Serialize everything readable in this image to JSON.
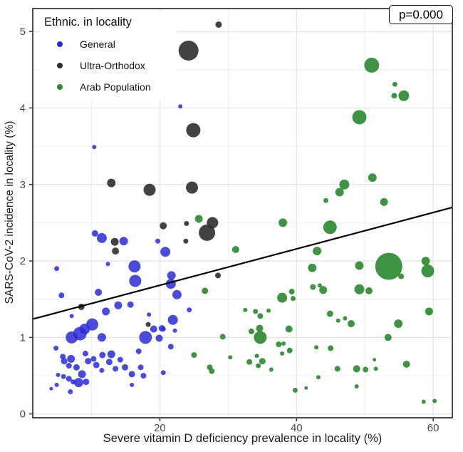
{
  "figure": {
    "p_value_label": "p=0.000",
    "legend": {
      "title": "Ethnic. in locality",
      "items": [
        {
          "label": "General",
          "color": "#2b2bd5"
        },
        {
          "label": "Ultra-Orthodox",
          "color": "#2d2d2d"
        },
        {
          "label": "Arab Population",
          "color": "#2f8b33"
        }
      ]
    }
  },
  "chart_data": {
    "type": "scatter",
    "title": "",
    "xlabel": "Severe vitamin D deficiency prevalence in locality (%)",
    "ylabel": "SARS-CoV-2 incidence in locality (%)",
    "xlim": [
      1.4,
      62.8
    ],
    "ylim": [
      -0.05,
      5.3
    ],
    "x_ticks": [
      20,
      40,
      60
    ],
    "y_ticks": [
      0,
      1,
      2,
      3,
      4,
      5
    ],
    "x_minor_ticks": [
      10,
      30,
      50
    ],
    "y_minor_ticks": [
      0.5,
      1.5,
      2.5,
      3.5,
      4.5
    ],
    "grid": "major and minor, light gray on white",
    "legend_position": "top-left inside panel",
    "annotation": "p=0.000",
    "regression_line": {
      "x1": 1.4,
      "y1": 1.24,
      "x2": 62.8,
      "y2": 2.7,
      "color": "#000000"
    },
    "series": [
      {
        "name": "General",
        "color": "#2b2bd5",
        "opacity": 0.85,
        "points": [
          [
            23.0,
            4.02,
            3
          ],
          [
            10.4,
            3.49,
            3
          ],
          [
            10.5,
            2.36,
            4.5
          ],
          [
            11.5,
            2.3,
            7
          ],
          [
            14.7,
            2.26,
            6
          ],
          [
            19.7,
            2.26,
            3.5
          ],
          [
            20.8,
            2.12,
            7
          ],
          [
            12.4,
            1.96,
            3
          ],
          [
            4.9,
            1.9,
            3.5
          ],
          [
            16.3,
            1.93,
            8.5
          ],
          [
            16.4,
            1.74,
            8.5
          ],
          [
            5.6,
            1.55,
            4
          ],
          [
            11.0,
            1.59,
            5
          ],
          [
            12.1,
            1.34,
            5.5
          ],
          [
            13.9,
            1.42,
            5.5
          ],
          [
            15.7,
            1.43,
            4.5
          ],
          [
            7.1,
            1.28,
            3
          ],
          [
            21.7,
            1.81,
            6
          ],
          [
            21.6,
            1.7,
            7
          ],
          [
            22.5,
            1.56,
            6.5
          ],
          [
            24.3,
            1.36,
            3.5
          ],
          [
            21.9,
            1.23,
            7
          ],
          [
            20.5,
            1.11,
            3.5
          ],
          [
            22.2,
            1.09,
            3
          ],
          [
            21.6,
            0.88,
            4
          ],
          [
            20.5,
            0.54,
            3.5
          ],
          [
            7.1,
            1.0,
            8.5
          ],
          [
            8.3,
            1.05,
            9.5
          ],
          [
            9.0,
            1.11,
            7.5
          ],
          [
            10.1,
            1.17,
            8.5
          ],
          [
            11.5,
            1.0,
            6
          ],
          [
            4.8,
            0.86,
            3.5
          ],
          [
            5.8,
            0.75,
            4
          ],
          [
            6.0,
            0.69,
            4.5
          ],
          [
            7.0,
            0.72,
            5.5
          ],
          [
            6.7,
            0.63,
            4
          ],
          [
            5.1,
            0.51,
            3
          ],
          [
            5.9,
            0.49,
            3.5
          ],
          [
            4.9,
            0.38,
            3
          ],
          [
            6.7,
            0.46,
            4
          ],
          [
            7.3,
            0.42,
            3.5
          ],
          [
            6.9,
            0.29,
            3.5
          ],
          [
            7.8,
            0.61,
            4.5
          ],
          [
            8.6,
            0.52,
            5.5
          ],
          [
            8.1,
            0.41,
            6.5
          ],
          [
            9.2,
            0.42,
            4.5
          ],
          [
            9.5,
            0.69,
            4.5
          ],
          [
            9.1,
            0.79,
            4
          ],
          [
            10.3,
            0.72,
            4
          ],
          [
            10.7,
            0.64,
            4.5
          ],
          [
            11.5,
            0.57,
            3.5
          ],
          [
            11.6,
            0.77,
            4.5
          ],
          [
            12.6,
            0.68,
            4.5
          ],
          [
            12.9,
            0.78,
            5.5
          ],
          [
            13.5,
            0.59,
            4
          ],
          [
            14.2,
            0.71,
            4
          ],
          [
            14.9,
            0.61,
            4.5
          ],
          [
            15.9,
            0.52,
            4.5
          ],
          [
            17.2,
            0.61,
            4
          ],
          [
            17.6,
            0.5,
            4
          ],
          [
            15.9,
            0.38,
            3
          ],
          [
            16.9,
            0.82,
            4
          ],
          [
            17.9,
            1.0,
            9
          ],
          [
            19.1,
            1.11,
            5
          ],
          [
            18.4,
            1.3,
            3
          ],
          [
            20.3,
            1.12,
            4.5
          ],
          [
            19.9,
            0.99,
            5
          ],
          [
            4.1,
            0.33,
            2.5
          ]
        ]
      },
      {
        "name": "Arab Population",
        "color": "#2f8b33",
        "opacity": 0.92,
        "points": [
          [
            51.0,
            4.56,
            10.5
          ],
          [
            54.4,
            4.31,
            3.5
          ],
          [
            54.3,
            4.16,
            4
          ],
          [
            55.7,
            4.16,
            7.5
          ],
          [
            49.2,
            3.88,
            10
          ],
          [
            51.1,
            3.09,
            6
          ],
          [
            47.0,
            3.0,
            7
          ],
          [
            46.3,
            2.9,
            6
          ],
          [
            44.3,
            2.79,
            3.5
          ],
          [
            52.8,
            2.77,
            5.5
          ],
          [
            44.9,
            2.44,
            9.5
          ],
          [
            25.7,
            2.55,
            5.5
          ],
          [
            38.0,
            2.5,
            6
          ],
          [
            31.1,
            2.15,
            5
          ],
          [
            43.0,
            2.13,
            6
          ],
          [
            42.3,
            1.91,
            6
          ],
          [
            49.2,
            1.94,
            6
          ],
          [
            53.5,
            1.93,
            19
          ],
          [
            55.3,
            1.8,
            4
          ],
          [
            58.9,
            2.0,
            6
          ],
          [
            59.2,
            1.87,
            9
          ],
          [
            26.6,
            1.61,
            4.5
          ],
          [
            32.5,
            1.36,
            3
          ],
          [
            34.0,
            1.34,
            3.5
          ],
          [
            34.7,
            1.28,
            4
          ],
          [
            35.9,
            1.35,
            3
          ],
          [
            37.9,
            1.52,
            7
          ],
          [
            39.3,
            1.6,
            4
          ],
          [
            39.5,
            1.51,
            3.5
          ],
          [
            42.4,
            1.66,
            4
          ],
          [
            43.4,
            1.68,
            3
          ],
          [
            43.9,
            1.62,
            5.5
          ],
          [
            49.2,
            1.63,
            7
          ],
          [
            50.6,
            1.61,
            5
          ],
          [
            44.9,
            1.31,
            4.5
          ],
          [
            46.1,
            1.22,
            3
          ],
          [
            47.1,
            1.25,
            3
          ],
          [
            48.0,
            1.18,
            5
          ],
          [
            54.9,
            1.18,
            6
          ],
          [
            59.4,
            1.34,
            5.5
          ],
          [
            25.0,
            0.77,
            4
          ],
          [
            29.2,
            1.01,
            4
          ],
          [
            27.3,
            0.61,
            4
          ],
          [
            27.6,
            0.56,
            4
          ],
          [
            30.3,
            0.74,
            3
          ],
          [
            33.4,
            1.08,
            4
          ],
          [
            34.6,
            1.12,
            5
          ],
          [
            34.7,
            1.0,
            9
          ],
          [
            38.9,
            1.11,
            5
          ],
          [
            37.4,
            0.91,
            4
          ],
          [
            38.1,
            0.92,
            3
          ],
          [
            39.0,
            0.83,
            4
          ],
          [
            37.9,
            0.79,
            3
          ],
          [
            33.1,
            0.68,
            4
          ],
          [
            34.2,
            0.76,
            3
          ],
          [
            35.0,
            0.69,
            4.5
          ],
          [
            34.4,
            0.63,
            3.5
          ],
          [
            36.3,
            0.58,
            3
          ],
          [
            39.8,
            0.31,
            3.5
          ],
          [
            53.4,
            1.0,
            5
          ],
          [
            42.9,
            0.87,
            3
          ],
          [
            45.0,
            0.86,
            4
          ],
          [
            51.4,
            0.71,
            2.5
          ],
          [
            46.0,
            0.59,
            4
          ],
          [
            48.8,
            0.59,
            5
          ],
          [
            50.1,
            0.58,
            4
          ],
          [
            51.6,
            0.59,
            3
          ],
          [
            56.1,
            0.65,
            5
          ],
          [
            43.2,
            0.48,
            3
          ],
          [
            41.4,
            0.34,
            2.5
          ],
          [
            48.8,
            0.36,
            3
          ],
          [
            58.6,
            0.16,
            3
          ],
          [
            60.2,
            0.17,
            3
          ]
        ]
      },
      {
        "name": "Ultra-Orthodox",
        "color": "#2d2d2d",
        "opacity": 0.9,
        "points": [
          [
            28.6,
            5.09,
            4.5
          ],
          [
            24.2,
            4.75,
            14
          ],
          [
            24.9,
            3.71,
            10
          ],
          [
            12.9,
            3.02,
            6
          ],
          [
            18.5,
            2.93,
            8.5
          ],
          [
            24.7,
            2.96,
            8.5
          ],
          [
            20.5,
            2.46,
            5
          ],
          [
            23.9,
            2.49,
            3.5
          ],
          [
            27.7,
            2.5,
            8
          ],
          [
            26.9,
            2.37,
            11.5
          ],
          [
            23.8,
            2.26,
            3.5
          ],
          [
            13.4,
            2.25,
            5.5
          ],
          [
            13.5,
            2.13,
            5
          ],
          [
            8.5,
            1.4,
            4.5
          ],
          [
            28.5,
            1.81,
            4
          ],
          [
            18.3,
            1.17,
            3.5
          ]
        ]
      }
    ]
  }
}
